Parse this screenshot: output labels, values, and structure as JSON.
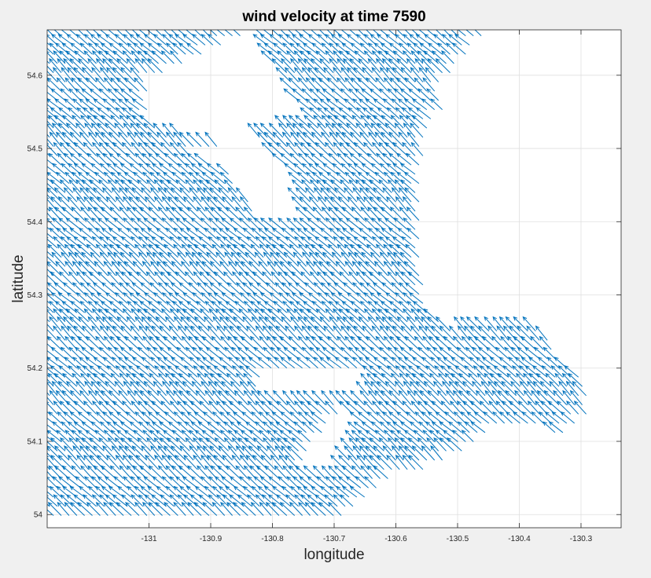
{
  "chart_data": {
    "type": "quiver",
    "title": "wind velocity at time 7590",
    "xlabel": "longitude",
    "ylabel": "latitude",
    "xlim": [
      -131.165,
      -130.235
    ],
    "ylim": [
      53.982,
      54.662
    ],
    "xticks": [
      -131,
      -130.9,
      -130.8,
      -130.7,
      -130.6,
      -130.5,
      -130.4,
      -130.3
    ],
    "xtick_labels": [
      "-131",
      "-130.9",
      "-130.8",
      "-130.7",
      "-130.6",
      "-130.5",
      "-130.4",
      "-130.3"
    ],
    "yticks": [
      54,
      54.1,
      54.2,
      54.3,
      54.4,
      54.5,
      54.6
    ],
    "ytick_labels": [
      "54",
      "54.1",
      "54.2",
      "54.3",
      "54.4",
      "54.5",
      "54.6"
    ],
    "grid": true,
    "vector_color": "#0072bd",
    "grid_spacing": {
      "dlon": 0.0126,
      "dlat": 0.0126
    },
    "typical_vector": {
      "u": -0.021,
      "v": 0.017
    },
    "direction": "vectors point toward the northwest (up-left)",
    "data_region_polygon_lonlat": [
      [
        -131.165,
        53.99
      ],
      [
        -130.69,
        53.99
      ],
      [
        -130.6,
        54.05
      ],
      [
        -130.52,
        54.07
      ],
      [
        -130.43,
        54.12
      ],
      [
        -130.33,
        54.11
      ],
      [
        -130.29,
        54.13
      ],
      [
        -130.29,
        54.18
      ],
      [
        -130.33,
        54.21
      ],
      [
        -130.36,
        54.25
      ],
      [
        -130.4,
        54.26
      ],
      [
        -130.5,
        54.25
      ],
      [
        -130.55,
        54.28
      ],
      [
        -130.56,
        54.35
      ],
      [
        -130.56,
        54.4
      ],
      [
        -130.555,
        54.5
      ],
      [
        -130.52,
        54.56
      ],
      [
        -130.53,
        54.58
      ],
      [
        -130.455,
        54.66
      ],
      [
        -131.165,
        54.66
      ]
    ],
    "holes_polygon_lonlat": [
      [
        [
          -131.0,
          54.59
        ],
        [
          -130.83,
          54.66
        ],
        [
          -130.74,
          54.54
        ],
        [
          -130.82,
          54.52
        ],
        [
          -130.87,
          54.5
        ],
        [
          -131.0,
          54.53
        ]
      ],
      [
        [
          -130.93,
          54.49
        ],
        [
          -130.82,
          54.51
        ],
        [
          -130.76,
          54.46
        ],
        [
          -130.75,
          54.4
        ],
        [
          -130.82,
          54.4
        ],
        [
          -130.87,
          54.47
        ]
      ],
      [
        [
          -130.82,
          54.16
        ],
        [
          -130.65,
          54.16
        ],
        [
          -130.63,
          54.2
        ],
        [
          -130.82,
          54.2
        ]
      ],
      [
        [
          -130.75,
          54.06
        ],
        [
          -130.69,
          54.05
        ],
        [
          -130.66,
          54.13
        ],
        [
          -130.69,
          54.14
        ],
        [
          -130.75,
          54.08
        ]
      ]
    ]
  }
}
